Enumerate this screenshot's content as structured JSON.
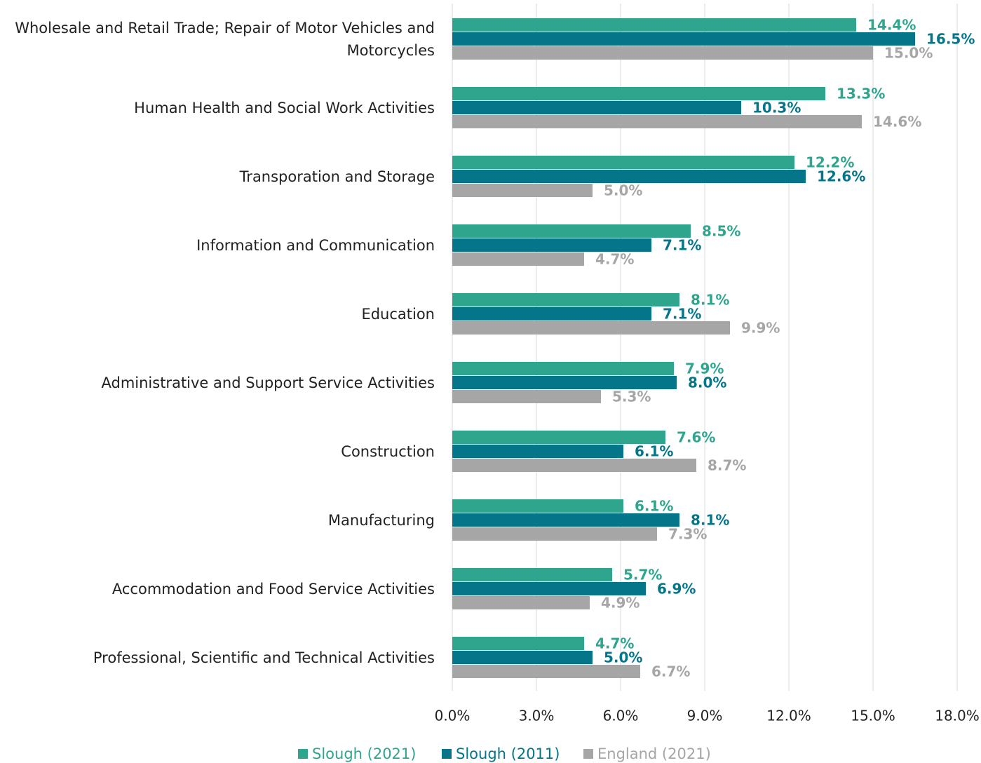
{
  "chart_data": {
    "type": "bar",
    "orientation": "horizontal",
    "categories": [
      "Wholesale and Retail Trade; Repair of Motor Vehicles and Motorcycles",
      "Human Health and Social Work Activities",
      "Transporation and Storage",
      "Information and Communication",
      "Education",
      "Administrative and Support Service Activities",
      "Construction",
      "Manufacturing",
      "Accommodation and Food Service Activities",
      "Professional, Scientific and Technical Activities"
    ],
    "series": [
      {
        "name": "Slough (2021)",
        "color": "#2fa58e",
        "values": [
          14.4,
          13.3,
          12.2,
          8.5,
          8.1,
          7.9,
          7.6,
          6.1,
          5.7,
          4.7
        ],
        "value_labels": [
          "14.4%",
          "13.3%",
          "12.2%",
          "8.5%",
          "8.1%",
          "7.9%",
          "7.6%",
          "6.1%",
          "5.7%",
          "4.7%"
        ]
      },
      {
        "name": "Slough (2011)",
        "color": "#05768a",
        "values": [
          16.5,
          10.3,
          12.6,
          7.1,
          7.1,
          8.0,
          6.1,
          8.1,
          6.9,
          5.0
        ],
        "value_labels": [
          "16.5%",
          "10.3%",
          "12.6%",
          "7.1%",
          "7.1%",
          "8.0%",
          "6.1%",
          "8.1%",
          "6.9%",
          "5.0%"
        ]
      },
      {
        "name": "England (2021)",
        "color": "#a6a6a6",
        "values": [
          15.0,
          14.6,
          5.0,
          4.7,
          9.9,
          5.3,
          8.7,
          7.3,
          4.9,
          6.7
        ],
        "value_labels": [
          "15.0%",
          "14.6%",
          "5.0%",
          "4.7%",
          "9.9%",
          "5.3%",
          "8.7%",
          "7.3%",
          "4.9%",
          "6.7%"
        ]
      }
    ],
    "xlim": [
      0,
      18
    ],
    "xticks": [
      {
        "value": 0,
        "label": "0.0%"
      },
      {
        "value": 3,
        "label": "3.0%"
      },
      {
        "value": 6,
        "label": "6.0%"
      },
      {
        "value": 9,
        "label": "9.0%"
      },
      {
        "value": 12,
        "label": "12.0%"
      },
      {
        "value": 15,
        "label": "15.0%"
      },
      {
        "value": 18,
        "label": "18.0%"
      }
    ],
    "grid": true,
    "legend": "bottom"
  }
}
